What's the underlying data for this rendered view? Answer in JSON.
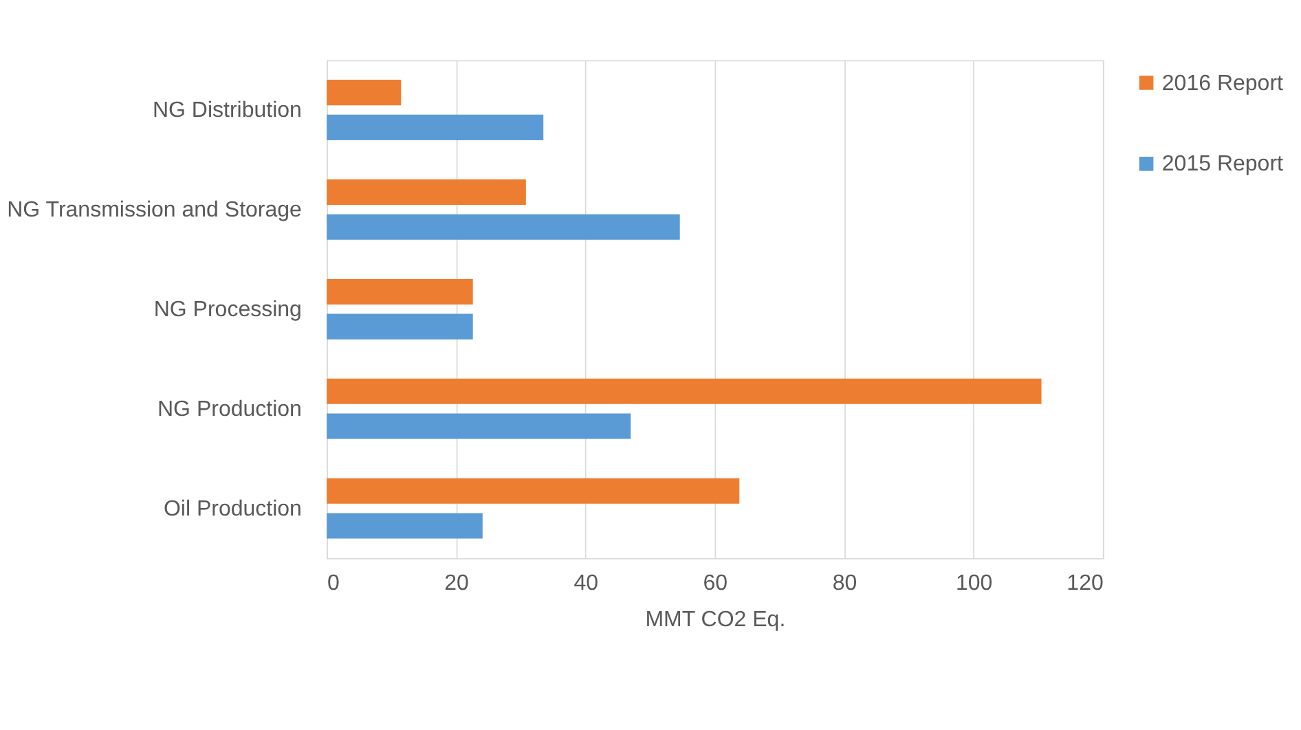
{
  "chart_data": {
    "type": "bar",
    "orientation": "horizontal",
    "xlabel": "MMT CO2 Eq.",
    "categories": [
      "NG Distribution",
      "NG Transmission and Storage",
      "NG Processing",
      "NG Production",
      "Oil Production"
    ],
    "series": [
      {
        "name": "2016 Report",
        "color": "#ed7d31",
        "values": [
          11.5,
          30.8,
          22.6,
          110.5,
          63.8
        ]
      },
      {
        "name": "2015 Report",
        "color": "#5b9bd5",
        "values": [
          33.5,
          54.6,
          22.6,
          47.0,
          24.1
        ]
      }
    ],
    "xlim": [
      0,
      120
    ],
    "xticks": [
      0,
      20,
      40,
      60,
      80,
      100,
      120
    ],
    "grid": "x",
    "legend": "right"
  }
}
